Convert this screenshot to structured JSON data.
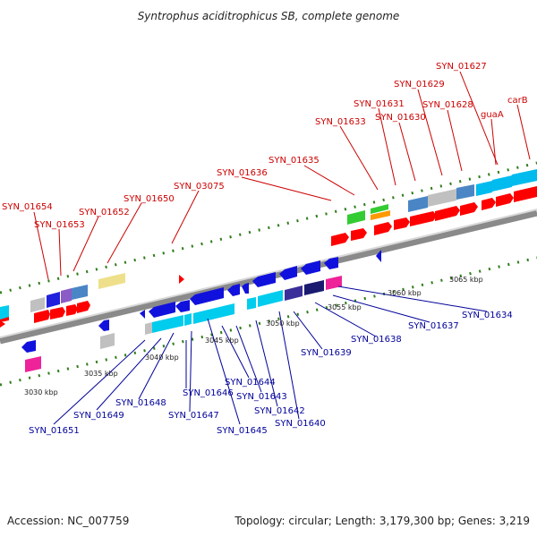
{
  "title": "Syntrophus aciditrophicus SB, complete genome",
  "footer": {
    "accession": "Accession: NC_007759",
    "summary": "Topology: circular; Length: 3,179,300 bp; Genes: 3,219"
  },
  "colors": {
    "forward_label": "#cc0000",
    "reverse_label": "#000099",
    "backbone": "#888888",
    "tick": "#2e7d1a"
  },
  "scale_labels": [
    "3030 kbp",
    "3035 kbp",
    "3040 kbp",
    "3045 kbp",
    "3050 kbp",
    "3055 kbp",
    "3060 kbp",
    "3065 kbp"
  ],
  "forward_genes": [
    "SYN_01654",
    "SYN_01653",
    "SYN_01652",
    "SYN_01650",
    "SYN_03075",
    "SYN_01636",
    "SYN_01635",
    "SYN_01633",
    "SYN_01631",
    "SYN_01630",
    "SYN_01629",
    "SYN_01628",
    "SYN_01627",
    "guaA",
    "carB"
  ],
  "reverse_genes": [
    "SYN_01651",
    "SYN_01649",
    "SYN_01648",
    "SYN_01647",
    "SYN_01646",
    "SYN_01645",
    "SYN_01644",
    "SYN_01643",
    "SYN_01642",
    "SYN_01640",
    "SYN_01639",
    "SYN_01638",
    "SYN_01637",
    "SYN_01634"
  ]
}
